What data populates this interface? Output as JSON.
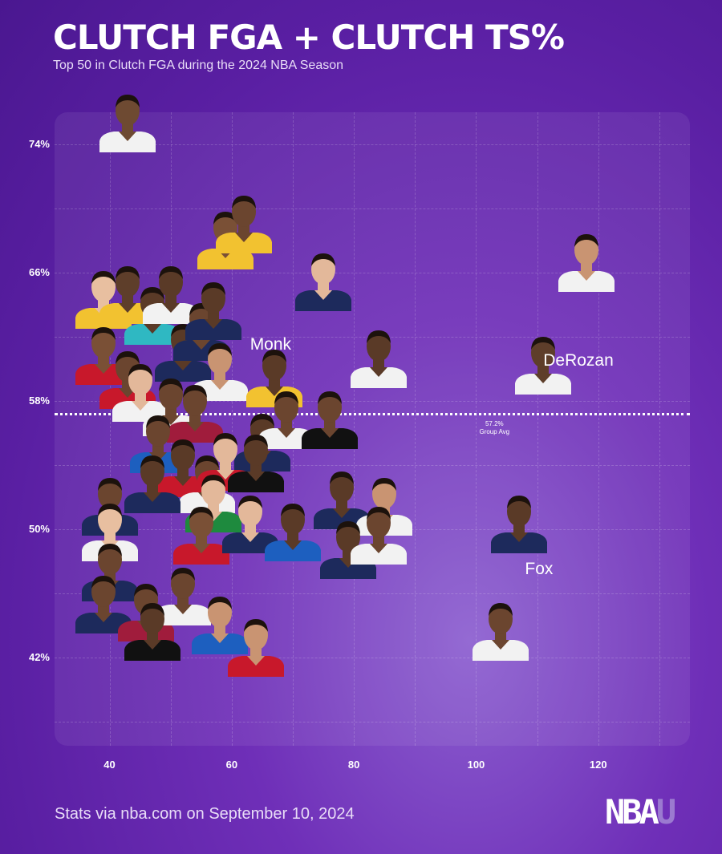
{
  "title": "CLUTCH FGA + CLUTCH TS%",
  "subtitle": "Top 50 in Clutch FGA during the 2024 NBA Season",
  "footer": "Stats via nba.com on September 10, 2024",
  "logo": {
    "main": "NBA",
    "accent": "U"
  },
  "colors": {
    "avg_line": "#ffffff",
    "label": "#ffffff"
  },
  "chart_data": {
    "type": "scatter",
    "title": "CLUTCH FGA + CLUTCH TS%",
    "xlabel": "",
    "ylabel": "",
    "x_ticks": [
      40,
      60,
      80,
      100,
      120
    ],
    "y_ticks": [
      "74%",
      "66%",
      "58%",
      "50%",
      "42%"
    ],
    "xlim": [
      31,
      135
    ],
    "ylim": [
      36.5,
      76
    ],
    "grid": true,
    "group_avg": {
      "value": 57.2,
      "label_value": "57.2%",
      "label_text": "Group Avg"
    },
    "labeled_players": [
      {
        "name": "Monk",
        "x": 63,
        "y": 61.5
      },
      {
        "name": "DeRozan",
        "x": 111,
        "y": 60.5
      },
      {
        "name": "Fox",
        "x": 108,
        "y": 47.5
      }
    ],
    "points": [
      {
        "x": 43,
        "y": 75.5,
        "jersey": "#f2f2f2",
        "skin": "#6e4a32"
      },
      {
        "x": 59,
        "y": 68.2,
        "jersey": "#f2c230",
        "skin": "#7a5036"
      },
      {
        "x": 62,
        "y": 69.2,
        "jersey": "#f2c230",
        "skin": "#6b452f"
      },
      {
        "x": 75,
        "y": 65.6,
        "jersey": "#1d2a5c",
        "skin": "#e3b89a"
      },
      {
        "x": 118,
        "y": 66.8,
        "jersey": "#f2f2f2",
        "skin": "#c99472"
      },
      {
        "x": 39,
        "y": 64.5,
        "jersey": "#f2c230",
        "skin": "#e8bfa0"
      },
      {
        "x": 43,
        "y": 64.8,
        "jersey": "#f2c230",
        "skin": "#5e3e2a"
      },
      {
        "x": 47,
        "y": 63.5,
        "jersey": "#2fb8c2",
        "skin": "#5a3a27"
      },
      {
        "x": 50,
        "y": 64.8,
        "jersey": "#f2f2f2",
        "skin": "#5a3a27"
      },
      {
        "x": 52,
        "y": 61.2,
        "jersey": "#1d2a5c",
        "skin": "#5a3a27"
      },
      {
        "x": 55,
        "y": 62.5,
        "jersey": "#1d2a5c",
        "skin": "#6b452f"
      },
      {
        "x": 57,
        "y": 63.8,
        "jersey": "#1d2a5c",
        "skin": "#5a3a27"
      },
      {
        "x": 58,
        "y": 60.0,
        "jersey": "#f2f2f2",
        "skin": "#c99472"
      },
      {
        "x": 67,
        "y": 59.6,
        "jersey": "#f2c230",
        "skin": "#5a3a27"
      },
      {
        "x": 84,
        "y": 60.8,
        "jersey": "#f2f2f2",
        "skin": "#5a3a27"
      },
      {
        "x": 111,
        "y": 60.4,
        "jersey": "#f2f2f2",
        "skin": "#5e3e2a"
      },
      {
        "x": 39,
        "y": 61.0,
        "jersey": "#c8182b",
        "skin": "#7a5036"
      },
      {
        "x": 43,
        "y": 59.5,
        "jersey": "#c8182b",
        "skin": "#6b452f"
      },
      {
        "x": 45,
        "y": 58.7,
        "jersey": "#f2f2f2",
        "skin": "#e3b89a"
      },
      {
        "x": 50,
        "y": 57.8,
        "jersey": "#f2f2f2",
        "skin": "#6b452f"
      },
      {
        "x": 54,
        "y": 57.4,
        "jersey": "#a01c3c",
        "skin": "#6b452f"
      },
      {
        "x": 65,
        "y": 55.6,
        "jersey": "#1d2a5c",
        "skin": "#5a3a27"
      },
      {
        "x": 69,
        "y": 57.0,
        "jersey": "#f2f2f2",
        "skin": "#6b452f"
      },
      {
        "x": 76,
        "y": 57.0,
        "jersey": "#111111",
        "skin": "#6b452f"
      },
      {
        "x": 48,
        "y": 55.5,
        "jersey": "#1d5fbf",
        "skin": "#6b452f"
      },
      {
        "x": 52,
        "y": 54.0,
        "jersey": "#c8182b",
        "skin": "#5a3a27"
      },
      {
        "x": 56,
        "y": 53.0,
        "jersey": "#f2f2f2",
        "skin": "#6b452f"
      },
      {
        "x": 59,
        "y": 54.4,
        "jersey": "#c8182b",
        "skin": "#e3b89a"
      },
      {
        "x": 64,
        "y": 54.3,
        "jersey": "#111111",
        "skin": "#5a3a27"
      },
      {
        "x": 47,
        "y": 53.0,
        "jersey": "#1d2a5c",
        "skin": "#5a3a27"
      },
      {
        "x": 57,
        "y": 51.8,
        "jersey": "#1e8a3e",
        "skin": "#e3b89a"
      },
      {
        "x": 78,
        "y": 52.0,
        "jersey": "#1d2a5c",
        "skin": "#5a3a27"
      },
      {
        "x": 85,
        "y": 51.6,
        "jersey": "#f2f2f2",
        "skin": "#c99472"
      },
      {
        "x": 40,
        "y": 51.6,
        "jersey": "#1d2a5c",
        "skin": "#6b452f"
      },
      {
        "x": 40,
        "y": 50.0,
        "jersey": "#f2f2f2",
        "skin": "#e8bfa0"
      },
      {
        "x": 55,
        "y": 49.8,
        "jersey": "#c8182b",
        "skin": "#7a5036"
      },
      {
        "x": 63,
        "y": 50.5,
        "jersey": "#1d2a5c",
        "skin": "#e3b89a"
      },
      {
        "x": 70,
        "y": 50.0,
        "jersey": "#1d5fbf",
        "skin": "#5a3a27"
      },
      {
        "x": 79,
        "y": 48.9,
        "jersey": "#1d2a5c",
        "skin": "#5a3a27"
      },
      {
        "x": 84,
        "y": 49.8,
        "jersey": "#f2f2f2",
        "skin": "#6b452f"
      },
      {
        "x": 107,
        "y": 50.5,
        "jersey": "#1d2a5c",
        "skin": "#5a3a27"
      },
      {
        "x": 40,
        "y": 47.5,
        "jersey": "#1d2a5c",
        "skin": "#6b452f"
      },
      {
        "x": 39,
        "y": 45.5,
        "jersey": "#1d2a5c",
        "skin": "#6b452f"
      },
      {
        "x": 46,
        "y": 45.0,
        "jersey": "#a01c3c",
        "skin": "#6b452f"
      },
      {
        "x": 52,
        "y": 46.0,
        "jersey": "#f2f2f2",
        "skin": "#6b452f"
      },
      {
        "x": 47,
        "y": 43.8,
        "jersey": "#111111",
        "skin": "#5a3a27"
      },
      {
        "x": 58,
        "y": 44.2,
        "jersey": "#1d5fbf",
        "skin": "#c99472"
      },
      {
        "x": 64,
        "y": 42.8,
        "jersey": "#c8182b",
        "skin": "#c99472"
      },
      {
        "x": 104,
        "y": 43.8,
        "jersey": "#f2f2f2",
        "skin": "#6b452f"
      }
    ]
  }
}
